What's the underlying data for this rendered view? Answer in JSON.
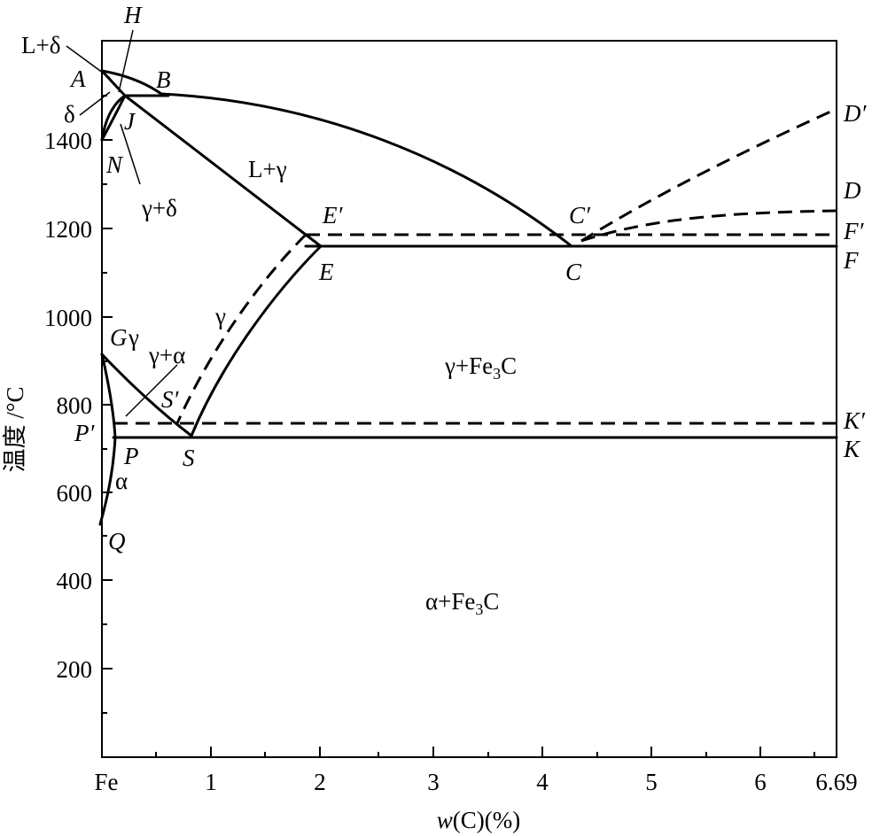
{
  "axes": {
    "x_title_var": "w",
    "x_title_rest": "(C)(%)",
    "y_title": "温度 /°C",
    "x_ticks": [
      {
        "label": "Fe",
        "value": 0
      },
      {
        "label": "1",
        "value": 1
      },
      {
        "label": "2",
        "value": 2
      },
      {
        "label": "3",
        "value": 3
      },
      {
        "label": "4",
        "value": 4
      },
      {
        "label": "5",
        "value": 5
      },
      {
        "label": "6",
        "value": 6
      },
      {
        "label": "6.69",
        "value": 6.69
      }
    ],
    "y_ticks": [
      {
        "label": "200",
        "value": 200
      },
      {
        "label": "400",
        "value": 400
      },
      {
        "label": "600",
        "value": 600
      },
      {
        "label": "800",
        "value": 800
      },
      {
        "label": "1000",
        "value": 1000
      },
      {
        "label": "1200",
        "value": 1200
      },
      {
        "label": "1400",
        "value": 1400
      }
    ],
    "x_range": [
      0,
      6.69
    ],
    "y_range": [
      0,
      1600
    ]
  },
  "points": {
    "A": "A",
    "B": "B",
    "H": "H",
    "J": "J",
    "N": "N",
    "E_prime": "E′",
    "E": "E",
    "C_prime": "C′",
    "C": "C",
    "D_prime": "D′",
    "D": "D",
    "F_prime": "F′",
    "F": "F",
    "G": "G",
    "S_prime": "S′",
    "S": "S",
    "P_prime": "P′",
    "P": "P",
    "Q": "Q",
    "K_prime": "K′",
    "K": "K"
  },
  "regions": {
    "l_delta": "L+δ",
    "delta": "δ",
    "gamma_delta": "γ+δ",
    "l_gamma": "L+γ",
    "gamma_g": "γ",
    "gamma_alpha": "γ+α",
    "gamma": "γ",
    "alpha": "α",
    "gamma_fe3c_main": "γ+Fe",
    "alpha_fe3c_main": "α+Fe",
    "sub3": "3",
    "carbide_c": "C"
  }
}
